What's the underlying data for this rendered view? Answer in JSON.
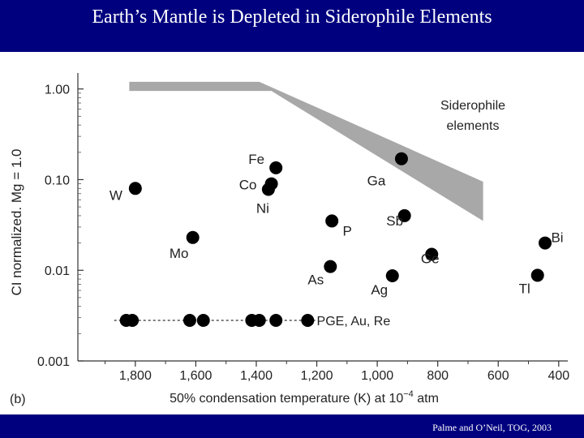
{
  "slide": {
    "title": "Earth’s Mantle is Depleted in Siderophile Elements",
    "citation": "Palme and O’Neil, TOG, 2003",
    "colors": {
      "bar": "#00007f",
      "band": "#a8a8a8",
      "marker": "#000000"
    }
  },
  "chart_data": {
    "type": "scatter",
    "panel_label": "(b)",
    "xlabel_main": "50% condensation temperature (K) at 10",
    "xlabel_exp": "−4",
    "xlabel_tail": " atm",
    "ylabel": "CI normalized. Mg = 1.0",
    "x_reversed": true,
    "xlim": [
      1990,
      370
    ],
    "ylim": [
      0.001,
      1.5
    ],
    "y_scale": "log",
    "x_ticks": [
      1800,
      1600,
      1400,
      1200,
      1000,
      800,
      600,
      400
    ],
    "x_tick_labels": [
      "1,800",
      "1,600",
      "1,400",
      "1,200",
      "1,000",
      "800",
      "600",
      "400"
    ],
    "y_ticks": [
      1.0,
      0.1,
      0.01,
      0.001
    ],
    "y_tick_labels": [
      "1.00",
      "0.10",
      "0.01",
      "0.001"
    ],
    "band_label": [
      "Siderophile",
      "elements"
    ],
    "band_top": [
      [
        1820,
        1.2
      ],
      [
        1390,
        1.2
      ],
      [
        650,
        0.095
      ]
    ],
    "band_bottom": [
      [
        1820,
        0.95
      ],
      [
        1350,
        0.95
      ],
      [
        650,
        0.035
      ]
    ],
    "points": [
      {
        "label": "W",
        "x": 1800,
        "y": 0.08
      },
      {
        "label": "Mo",
        "x": 1610,
        "y": 0.023
      },
      {
        "label": "Fe",
        "x": 1335,
        "y": 0.135
      },
      {
        "label": "Co",
        "x": 1350,
        "y": 0.09
      },
      {
        "label": "Ni",
        "x": 1360,
        "y": 0.078
      },
      {
        "label": "P",
        "x": 1150,
        "y": 0.035
      },
      {
        "label": "As",
        "x": 1155,
        "y": 0.011
      },
      {
        "label": "Ga",
        "x": 920,
        "y": 0.17
      },
      {
        "label": "Sb",
        "x": 910,
        "y": 0.04
      },
      {
        "label": "Ag",
        "x": 950,
        "y": 0.0087
      },
      {
        "label": "Ge",
        "x": 820,
        "y": 0.015
      },
      {
        "label": "Bi",
        "x": 445,
        "y": 0.02
      },
      {
        "label": "Tl",
        "x": 470,
        "y": 0.0088
      }
    ],
    "pge_label": "PGE, Au, Re",
    "pge_y": 0.0028,
    "pge_x": [
      1830,
      1810,
      1620,
      1575,
      1415,
      1390,
      1335,
      1230
    ]
  }
}
